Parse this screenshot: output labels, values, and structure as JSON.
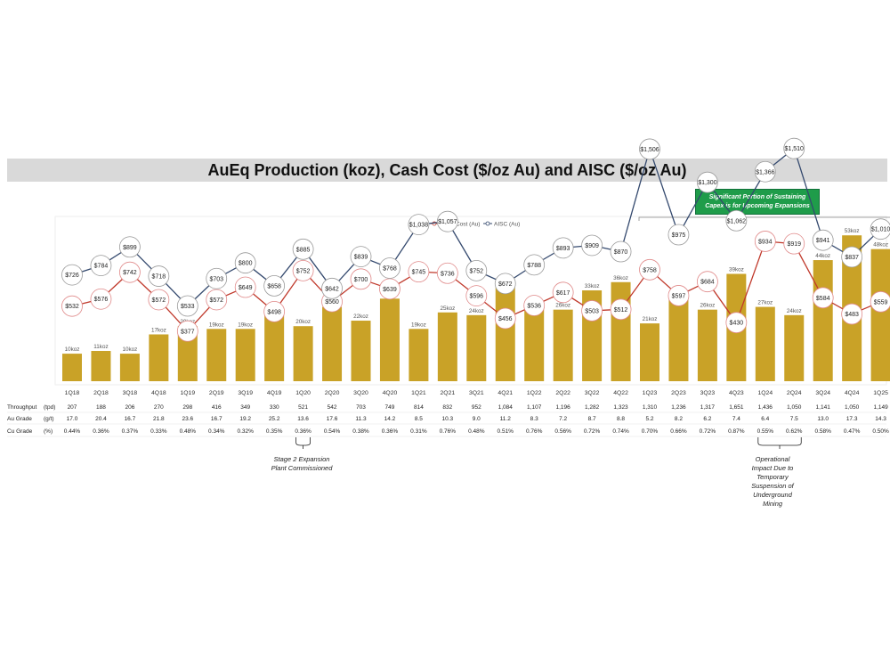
{
  "title": "AuEq Production (koz), Cash Cost ($/oz Au) and AISC ($/oz Au)",
  "callout": {
    "line1": "Significant Portion of Sustaining",
    "line2": "Capex is for Upcoming Expansions"
  },
  "notes": {
    "stage2_line1": "Stage 2 Expansion",
    "stage2_line2": "Plant Commissioned",
    "ops_line1": "Operational",
    "ops_line2": "Impact Due to",
    "ops_line3": "Temporary",
    "ops_line4": "Suspension of",
    "ops_line5": "Underground",
    "ops_line6": "Mining"
  },
  "colors": {
    "bar": "#c9a227",
    "cash_cost_line": "#c0392b",
    "aisc_line": "#34496e",
    "callout_bg": "#1f9c4a"
  },
  "chart_data": {
    "type": "bar",
    "title": "AuEq Production (koz), Cash Cost ($/oz Au) and AISC ($/oz Au)",
    "categories": [
      "1Q18",
      "2Q18",
      "3Q18",
      "4Q18",
      "1Q19",
      "2Q19",
      "3Q19",
      "4Q19",
      "1Q20",
      "2Q20",
      "3Q20",
      "4Q20",
      "1Q21",
      "2Q21",
      "3Q21",
      "4Q21",
      "1Q22",
      "2Q22",
      "3Q22",
      "4Q22",
      "1Q23",
      "2Q23",
      "3Q23",
      "4Q23",
      "1Q24",
      "2Q24",
      "3Q24",
      "4Q24",
      "1Q25"
    ],
    "production_koz": [
      10,
      11,
      10,
      17,
      20,
      19,
      19,
      24,
      20,
      27,
      22,
      30,
      19,
      25,
      24,
      36,
      28,
      26,
      33,
      36,
      21,
      31,
      26,
      39,
      27,
      24,
      44,
      53,
      48
    ],
    "production_labels": [
      "10koz",
      "11koz",
      "10koz",
      "17koz",
      "20koz",
      "19koz",
      "19koz",
      "24koz",
      "20koz",
      "27koz",
      "22koz",
      "30koz",
      "19koz",
      "25koz",
      "24koz",
      "36koz",
      "28koz",
      "26koz",
      "33koz",
      "36koz",
      "21koz",
      "31koz",
      "26koz",
      "39koz",
      "27koz",
      "24koz",
      "44koz",
      "53koz",
      "48koz"
    ],
    "series": [
      {
        "name": "Cash Cost (Au)",
        "values": [
          532,
          576,
          742,
          572,
          377,
          572,
          649,
          498,
          752,
          560,
          700,
          639,
          745,
          736,
          596,
          456,
          536,
          617,
          503,
          512,
          758,
          597,
          684,
          430,
          934,
          919,
          584,
          483,
          559
        ],
        "labels": [
          "$532",
          "$576",
          "$742",
          "$572",
          "$377",
          "$572",
          "$649",
          "$498",
          "$752",
          "$560",
          "$700",
          "$639",
          "$745",
          "$736",
          "$596",
          "$456",
          "$536",
          "$617",
          "$503",
          "$512",
          "$758",
          "$597",
          "$684",
          "$430",
          "$934",
          "$919",
          "$584",
          "$483",
          "$559"
        ]
      },
      {
        "name": "AISC (Au)",
        "values": [
          726,
          784,
          899,
          718,
          533,
          703,
          800,
          658,
          885,
          642,
          839,
          768,
          1038,
          1057,
          752,
          672,
          788,
          893,
          909,
          870,
          1506,
          975,
          1300,
          1062,
          1366,
          1510,
          941,
          837,
          1010
        ],
        "labels": [
          "$726",
          "$784",
          "$899",
          "$718",
          "$533",
          "$703",
          "$800",
          "$658",
          "$885",
          "$642",
          "$839",
          "$768",
          "$1,038",
          "$1,057",
          "$752",
          "$672",
          "$788",
          "$893",
          "$909",
          "$870",
          "$1,506",
          "$975",
          "$1,300",
          "$1,062",
          "$1,366",
          "$1,510",
          "$941",
          "$837",
          "$1,010"
        ]
      }
    ],
    "legend": [
      "Cash Cost (Au)",
      "AISC (Au)"
    ],
    "legend_position": "top-center",
    "table": {
      "rows": [
        {
          "label": "Throughput",
          "unit": "(tpd)",
          "values": [
            "207",
            "188",
            "206",
            "270",
            "298",
            "416",
            "349",
            "330",
            "521",
            "542",
            "703",
            "749",
            "814",
            "832",
            "952",
            "1,084",
            "1,107",
            "1,196",
            "1,282",
            "1,323",
            "1,310",
            "1,236",
            "1,317",
            "1,651",
            "1,436",
            "1,050",
            "1,141",
            "1,050",
            "1,149"
          ]
        },
        {
          "label": "Au Grade",
          "unit": "(g/t)",
          "values": [
            "17.0",
            "20.4",
            "16.7",
            "21.8",
            "23.6",
            "16.7",
            "19.2",
            "25.2",
            "13.6",
            "17.6",
            "11.3",
            "14.2",
            "8.5",
            "10.3",
            "9.0",
            "11.2",
            "8.3",
            "7.2",
            "8.7",
            "8.8",
            "5.2",
            "8.2",
            "6.2",
            "7.4",
            "6.4",
            "7.5",
            "13.0",
            "17.3",
            "14.3"
          ]
        },
        {
          "label": "Cu Grade",
          "unit": "(%)",
          "values": [
            "0.44%",
            "0.36%",
            "0.37%",
            "0.33%",
            "0.48%",
            "0.34%",
            "0.32%",
            "0.35%",
            "0.36%",
            "0.54%",
            "0.38%",
            "0.36%",
            "0.31%",
            "0.76%",
            "0.48%",
            "0.51%",
            "0.76%",
            "0.56%",
            "0.72%",
            "0.74%",
            "0.70%",
            "0.66%",
            "0.72%",
            "0.87%",
            "0.55%",
            "0.62%",
            "0.58%",
            "0.47%",
            "0.50%"
          ]
        }
      ]
    }
  }
}
